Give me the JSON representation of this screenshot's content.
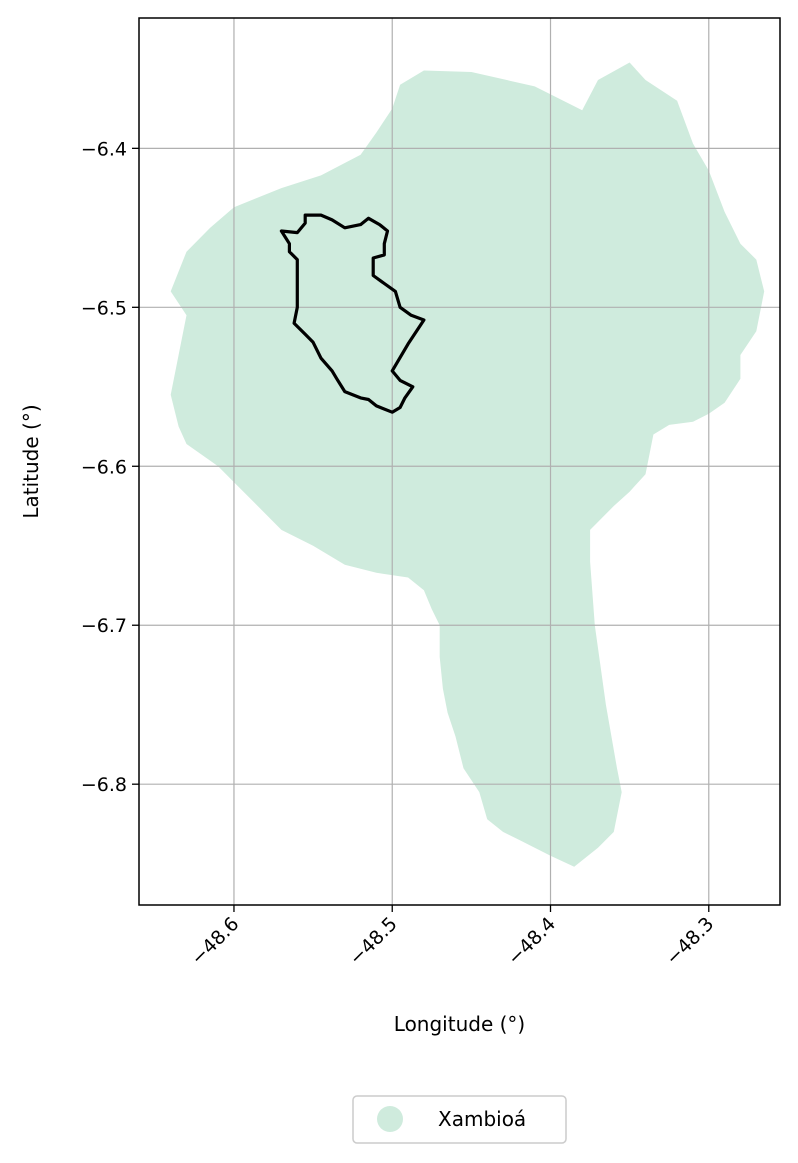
{
  "chart_data": {
    "type": "map",
    "xlabel": "Longitude (°)",
    "ylabel": "Latitude (°)",
    "xlim": [
      -48.66,
      -48.255
    ],
    "ylim": [
      -6.876,
      -6.318
    ],
    "x_ticks": [
      -48.6,
      -48.5,
      -48.4,
      -48.3
    ],
    "y_ticks": [
      -6.4,
      -6.5,
      -6.6,
      -6.7,
      -6.8
    ],
    "x_tick_labels": [
      "−48.6",
      "−48.5",
      "−48.4",
      "−48.3"
    ],
    "y_tick_labels": [
      "−6.4",
      "−6.5",
      "−6.6",
      "−6.7",
      "−6.8"
    ],
    "grid": true,
    "legend_position": "bottom-center",
    "layers": [
      {
        "name": "Xambioá",
        "kind": "filled-region",
        "color": "#cfebdd",
        "polygon": [
          [
            -48.48,
            -6.351
          ],
          [
            -48.45,
            -6.352
          ],
          [
            -48.41,
            -6.361
          ],
          [
            -48.38,
            -6.376
          ],
          [
            -48.37,
            -6.357
          ],
          [
            -48.35,
            -6.346
          ],
          [
            -48.34,
            -6.357
          ],
          [
            -48.32,
            -6.37
          ],
          [
            -48.31,
            -6.397
          ],
          [
            -48.3,
            -6.414
          ],
          [
            -48.29,
            -6.44
          ],
          [
            -48.28,
            -6.46
          ],
          [
            -48.27,
            -6.47
          ],
          [
            -48.265,
            -6.49
          ],
          [
            -48.27,
            -6.515
          ],
          [
            -48.28,
            -6.53
          ],
          [
            -48.28,
            -6.545
          ],
          [
            -48.29,
            -6.56
          ],
          [
            -48.3,
            -6.567
          ],
          [
            -48.31,
            -6.572
          ],
          [
            -48.325,
            -6.574
          ],
          [
            -48.335,
            -6.58
          ],
          [
            -48.34,
            -6.605
          ],
          [
            -48.35,
            -6.616
          ],
          [
            -48.36,
            -6.625
          ],
          [
            -48.375,
            -6.64
          ],
          [
            -48.375,
            -6.66
          ],
          [
            -48.372,
            -6.7
          ],
          [
            -48.365,
            -6.75
          ],
          [
            -48.358,
            -6.79
          ],
          [
            -48.355,
            -6.805
          ],
          [
            -48.36,
            -6.83
          ],
          [
            -48.37,
            -6.84
          ],
          [
            -48.385,
            -6.852
          ],
          [
            -48.4,
            -6.845
          ],
          [
            -48.41,
            -6.84
          ],
          [
            -48.42,
            -6.835
          ],
          [
            -48.43,
            -6.83
          ],
          [
            -48.44,
            -6.822
          ],
          [
            -48.445,
            -6.805
          ],
          [
            -48.455,
            -6.79
          ],
          [
            -48.46,
            -6.77
          ],
          [
            -48.465,
            -6.755
          ],
          [
            -48.468,
            -6.74
          ],
          [
            -48.47,
            -6.72
          ],
          [
            -48.47,
            -6.7
          ],
          [
            -48.475,
            -6.69
          ],
          [
            -48.48,
            -6.678
          ],
          [
            -48.49,
            -6.67
          ],
          [
            -48.51,
            -6.667
          ],
          [
            -48.53,
            -6.662
          ],
          [
            -48.55,
            -6.65
          ],
          [
            -48.57,
            -6.64
          ],
          [
            -48.585,
            -6.625
          ],
          [
            -48.6,
            -6.61
          ],
          [
            -48.61,
            -6.6
          ],
          [
            -48.63,
            -6.586
          ],
          [
            -48.635,
            -6.575
          ],
          [
            -48.64,
            -6.555
          ],
          [
            -48.635,
            -6.53
          ],
          [
            -48.63,
            -6.505
          ],
          [
            -48.64,
            -6.49
          ],
          [
            -48.63,
            -6.465
          ],
          [
            -48.615,
            -6.45
          ],
          [
            -48.6,
            -6.437
          ],
          [
            -48.57,
            -6.425
          ],
          [
            -48.545,
            -6.417
          ],
          [
            -48.52,
            -6.404
          ],
          [
            -48.51,
            -6.39
          ],
          [
            -48.5,
            -6.375
          ],
          [
            -48.495,
            -6.36
          ]
        ]
      },
      {
        "name": "",
        "kind": "outline",
        "color": "#000000",
        "polygon": [
          [
            -48.57,
            -6.452
          ],
          [
            -48.56,
            -6.453
          ],
          [
            -48.555,
            -6.447
          ],
          [
            -48.555,
            -6.442
          ],
          [
            -48.545,
            -6.442
          ],
          [
            -48.538,
            -6.445
          ],
          [
            -48.53,
            -6.45
          ],
          [
            -48.52,
            -6.448
          ],
          [
            -48.515,
            -6.444
          ],
          [
            -48.508,
            -6.448
          ],
          [
            -48.503,
            -6.452
          ],
          [
            -48.505,
            -6.46
          ],
          [
            -48.505,
            -6.467
          ],
          [
            -48.512,
            -6.469
          ],
          [
            -48.512,
            -6.48
          ],
          [
            -48.505,
            -6.485
          ],
          [
            -48.498,
            -6.49
          ],
          [
            -48.495,
            -6.5
          ],
          [
            -48.488,
            -6.505
          ],
          [
            -48.48,
            -6.508
          ],
          [
            -48.49,
            -6.523
          ],
          [
            -48.5,
            -6.54
          ],
          [
            -48.495,
            -6.546
          ],
          [
            -48.487,
            -6.55
          ],
          [
            -48.492,
            -6.557
          ],
          [
            -48.495,
            -6.563
          ],
          [
            -48.5,
            -6.566
          ],
          [
            -48.51,
            -6.562
          ],
          [
            -48.515,
            -6.558
          ],
          [
            -48.52,
            -6.557
          ],
          [
            -48.53,
            -6.553
          ],
          [
            -48.535,
            -6.545
          ],
          [
            -48.538,
            -6.54
          ],
          [
            -48.545,
            -6.532
          ],
          [
            -48.55,
            -6.522
          ],
          [
            -48.555,
            -6.517
          ],
          [
            -48.562,
            -6.51
          ],
          [
            -48.56,
            -6.5
          ],
          [
            -48.56,
            -6.49
          ],
          [
            -48.56,
            -6.478
          ],
          [
            -48.56,
            -6.47
          ],
          [
            -48.565,
            -6.465
          ],
          [
            -48.565,
            -6.46
          ]
        ]
      }
    ],
    "legend": [
      {
        "label": "Xambioá",
        "color": "#cfebdd"
      }
    ]
  }
}
